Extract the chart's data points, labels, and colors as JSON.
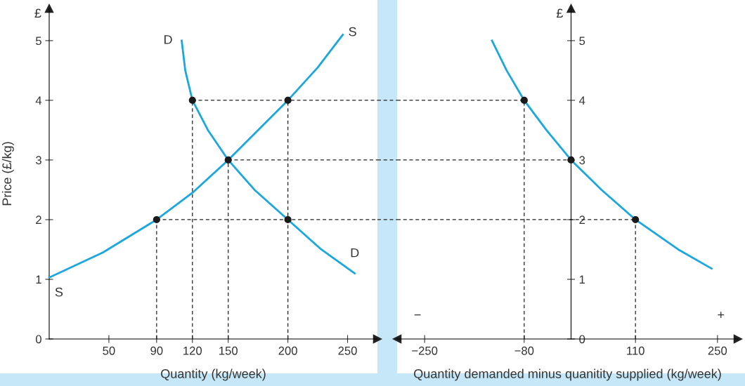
{
  "chart_data": [
    {
      "type": "line",
      "xlabel": "Quantity (kg/week)",
      "ylabel": "Price (£/kg)",
      "xlim": [
        0,
        275
      ],
      "ylim": [
        0,
        5.54
      ],
      "xticks": [
        50,
        90,
        120,
        150,
        200,
        250
      ],
      "yticks": [
        0,
        1,
        2,
        3,
        4,
        5
      ],
      "grid": false,
      "legend": false,
      "marker": "none",
      "line_style": "solid",
      "series": [
        {
          "name": "S",
          "color": "#1aa7e0",
          "x": [
            0,
            45,
            90,
            120,
            150,
            175,
            200,
            225,
            246
          ],
          "values": [
            1.03,
            1.45,
            2,
            2.45,
            3,
            3.5,
            4,
            4.55,
            5.1
          ]
        },
        {
          "name": "D",
          "color": "#1aa7e0",
          "x": [
            111,
            114,
            120,
            133,
            150,
            172,
            200,
            228,
            256
          ],
          "values": [
            5.0,
            4.5,
            4,
            3.5,
            3,
            2.5,
            2,
            1.5,
            1.1
          ]
        },
        {
          "type": "scatter",
          "color": "#1a1a1a",
          "marker": "circle",
          "x": [
            90,
            120,
            150,
            200,
            200
          ],
          "values": [
            2,
            4,
            3,
            4,
            2
          ]
        }
      ],
      "ref_lines": [
        {
          "axis": "x",
          "value": 90,
          "line_style": "dashed"
        },
        {
          "axis": "x",
          "value": 120,
          "line_style": "dashed"
        },
        {
          "axis": "x",
          "value": 150,
          "line_style": "dashed"
        },
        {
          "axis": "x",
          "value": 200,
          "line_style": "dashed"
        },
        {
          "axis": "y",
          "value": 2,
          "line_style": "dashed"
        },
        {
          "axis": "y",
          "value": 3,
          "line_style": "dashed"
        },
        {
          "axis": "y",
          "value": 4,
          "line_style": "dashed"
        }
      ],
      "annotations": [
        "£"
      ]
    },
    {
      "type": "line",
      "xlabel": "Quantity demanded minus quanitity supplied (kg/week)",
      "xlim": [
        -297,
        285
      ],
      "ylim": [
        0,
        5.54
      ],
      "xticks": [
        {
          "value": -250,
          "label": "−250"
        },
        {
          "value": -80,
          "label": "−80"
        },
        110,
        250
      ],
      "yticks": [
        0,
        1,
        2,
        3,
        4,
        5
      ],
      "grid": false,
      "legend": false,
      "marker": "none",
      "line_style": "solid",
      "series": [
        {
          "color": "#1aa7e0",
          "x": [
            -135,
            -110,
            -80,
            -42,
            0,
            52,
            110,
            183,
            240
          ],
          "values": [
            5.0,
            4.5,
            4,
            3.5,
            3,
            2.5,
            2,
            1.5,
            1.18
          ]
        },
        {
          "type": "scatter",
          "color": "#1a1a1a",
          "marker": "circle",
          "x": [
            -80,
            0,
            110
          ],
          "values": [
            4,
            3,
            2
          ]
        }
      ],
      "ref_lines": [
        {
          "axis": "x",
          "value": -80,
          "line_style": "dashed"
        },
        {
          "axis": "x",
          "value": 110,
          "line_style": "dashed"
        },
        {
          "axis": "y",
          "value": 2,
          "line_style": "dashed"
        },
        {
          "axis": "y",
          "value": 3,
          "line_style": "dashed"
        },
        {
          "axis": "y",
          "value": 4,
          "line_style": "dashed"
        }
      ],
      "annotations": [
        "£",
        "−",
        "+"
      ]
    }
  ]
}
